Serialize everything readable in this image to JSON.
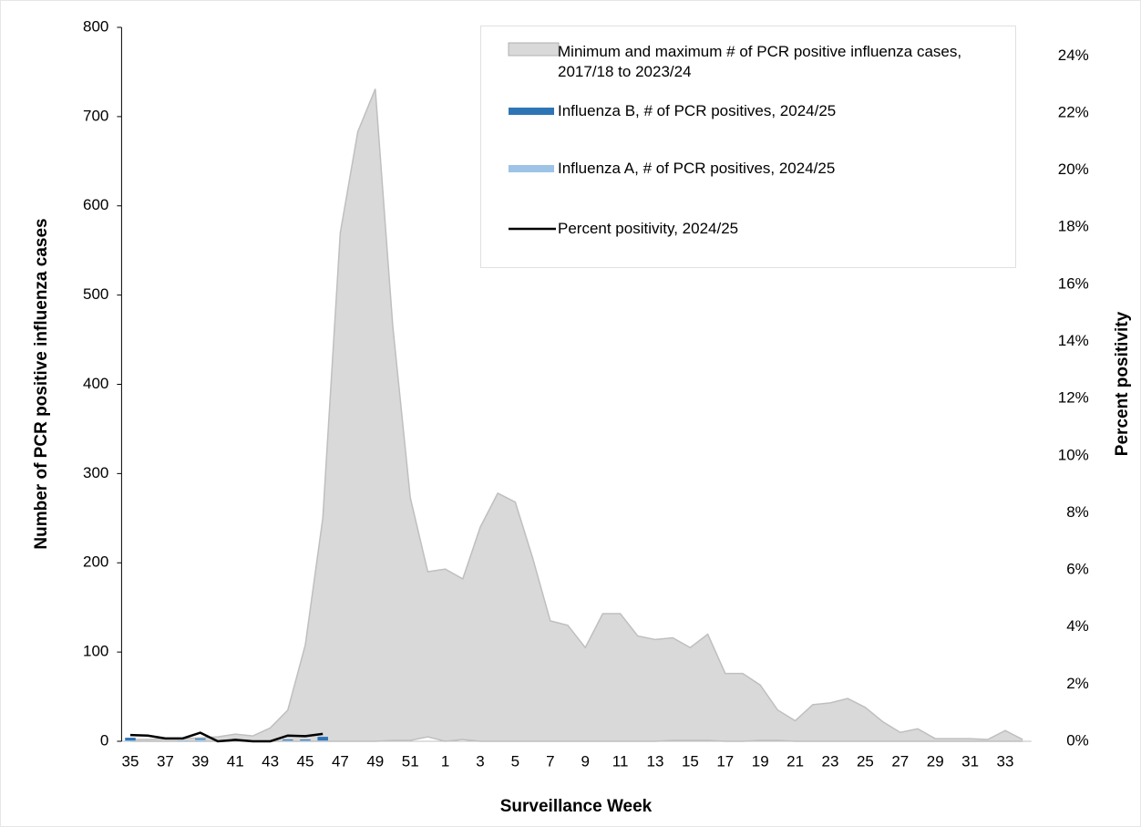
{
  "chart_data": {
    "type": "combo",
    "xlabel": "Surveillance Week",
    "ylabel": "Number of PCR positive influenza cases",
    "y2label": "Percent positivity",
    "categories": [
      "35",
      null,
      "37",
      null,
      "39",
      null,
      "41",
      null,
      "43",
      null,
      "45",
      null,
      "47",
      null,
      "49",
      null,
      "51",
      null,
      "1",
      null,
      "3",
      null,
      "5",
      null,
      "7",
      null,
      "9",
      null,
      "11",
      null,
      "13",
      null,
      "15",
      null,
      "17",
      null,
      "19",
      null,
      "21",
      null,
      "23",
      null,
      "25",
      null,
      "27",
      null,
      "29",
      null,
      "31",
      null,
      "33",
      null
    ],
    "range": {
      "name": "Minimum and maximum # of PCR positive influenza cases, 2017/18 to 2023/24",
      "color": "#d9d9d9",
      "edge": "#bfbfbf",
      "min": [
        0,
        0,
        0,
        0,
        0,
        0,
        0,
        0,
        0,
        0,
        0,
        0,
        0,
        0,
        0,
        1,
        1,
        5,
        0,
        2,
        0,
        0,
        0,
        0,
        0,
        0,
        0,
        0,
        0,
        0,
        0,
        1,
        1,
        1,
        0,
        0,
        1,
        1,
        0,
        0,
        0,
        0,
        0,
        0,
        0,
        0,
        0,
        0,
        0,
        0,
        0,
        0
      ],
      "max": [
        2,
        2,
        3,
        3,
        4,
        5,
        8,
        6,
        15,
        35,
        108,
        250,
        570,
        683,
        731,
        465,
        273,
        190,
        193,
        182,
        240,
        278,
        268,
        205,
        135,
        130,
        105,
        143,
        143,
        118,
        114,
        116,
        105,
        120,
        76,
        76,
        63,
        35,
        23,
        41,
        43,
        48,
        38,
        22,
        10,
        14,
        3,
        3,
        3,
        2,
        12,
        2
      ]
    },
    "series": [
      {
        "name": "Influenza A, # of PCR positives, 2024/25",
        "type": "bar",
        "color": "#9dc3e6",
        "values": [
          1,
          0,
          0,
          1,
          2,
          0,
          1,
          0,
          0,
          1,
          1,
          1,
          null,
          null,
          null,
          null,
          null,
          null,
          null,
          null,
          null,
          null,
          null,
          null,
          null,
          null,
          null,
          null,
          null,
          null,
          null,
          null,
          null,
          null,
          null,
          null,
          null,
          null,
          null,
          null,
          null,
          null,
          null,
          null,
          null,
          null,
          null,
          null,
          null,
          null,
          null,
          null
        ]
      },
      {
        "name": "Influenza B, # of PCR positives, 2024/25",
        "type": "bar",
        "color": "#2e75b6",
        "values": [
          3,
          0,
          0,
          0,
          1,
          0,
          0,
          0,
          0,
          1,
          1,
          4,
          null,
          null,
          null,
          null,
          null,
          null,
          null,
          null,
          null,
          null,
          null,
          null,
          null,
          null,
          null,
          null,
          null,
          null,
          null,
          null,
          null,
          null,
          null,
          null,
          null,
          null,
          null,
          null,
          null,
          null,
          null,
          null,
          null,
          null,
          null,
          null,
          null,
          null,
          null,
          null
        ]
      },
      {
        "name": "Percent positivity, 2024/25",
        "type": "line",
        "axis": "y2",
        "color": "#000000",
        "values": [
          0.22,
          0.2,
          0.1,
          0.1,
          0.3,
          0,
          0.05,
          0,
          0,
          0.2,
          0.18,
          0.26,
          null,
          null,
          null,
          null,
          null,
          null,
          null,
          null,
          null,
          null,
          null,
          null,
          null,
          null,
          null,
          null,
          null,
          null,
          null,
          null,
          null,
          null,
          null,
          null,
          null,
          null,
          null,
          null,
          null,
          null,
          null,
          null,
          null,
          null,
          null,
          null,
          null,
          null,
          null,
          null
        ]
      }
    ],
    "ylim": [
      0,
      800
    ],
    "yticks": [
      0,
      100,
      200,
      300,
      400,
      500,
      600,
      700,
      800
    ],
    "y2lim": [
      0,
      25
    ],
    "y2ticks": [
      {
        "value": 0,
        "label": "0%"
      },
      {
        "value": 2,
        "label": "2%"
      },
      {
        "value": 4,
        "label": "4%"
      },
      {
        "value": 6,
        "label": "6%"
      },
      {
        "value": 8,
        "label": "8%"
      },
      {
        "value": 10,
        "label": "10%"
      },
      {
        "value": 12,
        "label": "12%"
      },
      {
        "value": 14,
        "label": "14%"
      },
      {
        "value": 16,
        "label": "16%"
      },
      {
        "value": 18,
        "label": "18%"
      },
      {
        "value": 20,
        "label": "20%"
      },
      {
        "value": 22,
        "label": "22%"
      },
      {
        "value": 24,
        "label": "24%"
      }
    ],
    "grid": false
  }
}
